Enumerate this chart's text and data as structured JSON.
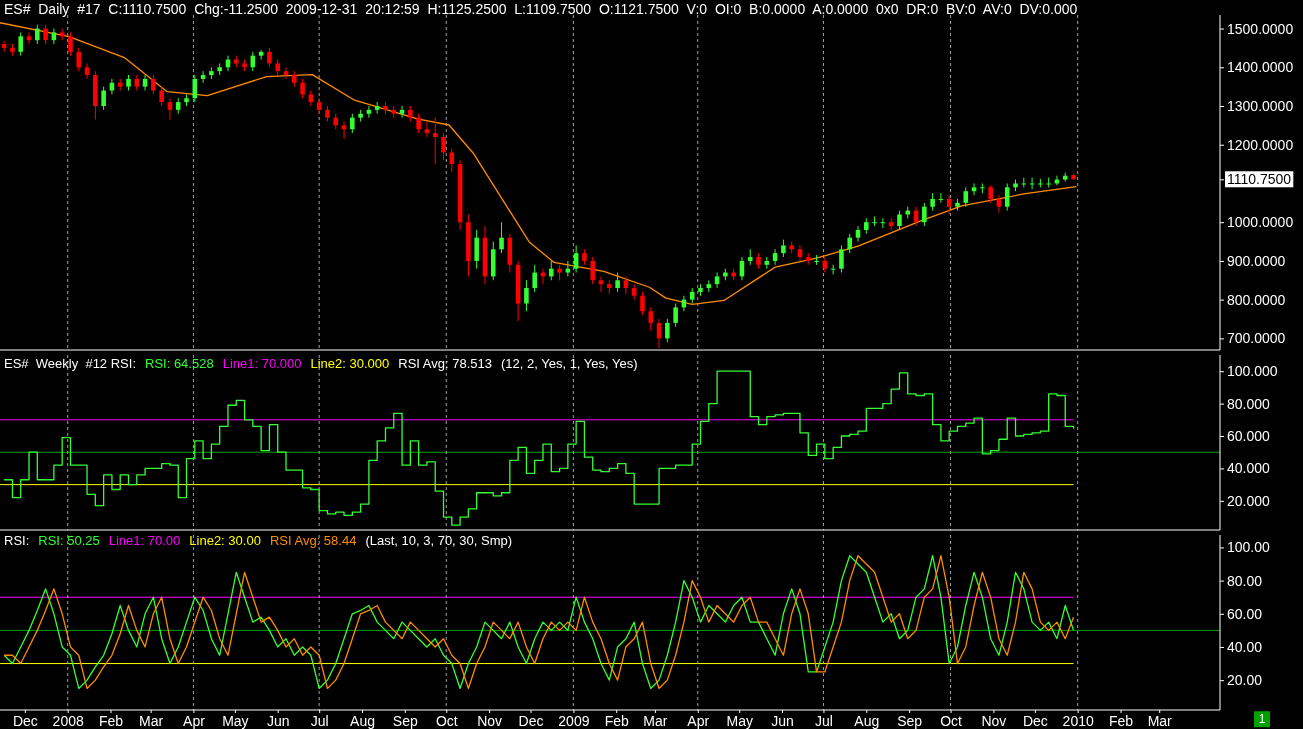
{
  "chart_data": [
    {
      "type": "candlestick",
      "title": "ES#  Daily  #17  C:1110.7500  Chg:-11.2500  2009-12-31  20:12:59  H:1125.2500  L:1109.7500  O:1121.7500  V:0  OI:0  B:0.0000  A:0.0000  0x0  DR:0  BV:0  AV:0  DV:0.000",
      "x": [
        "2007-11-16",
        "2007-11-22",
        "2007-11-28",
        "2007-12-04",
        "2007-12-10",
        "2007-12-16",
        "2007-12-22",
        "2007-12-28",
        "2008-01-03",
        "2008-01-09",
        "2008-01-15",
        "2008-01-21",
        "2008-01-27",
        "2008-02-02",
        "2008-02-08",
        "2008-02-14",
        "2008-02-20",
        "2008-02-26",
        "2008-03-03",
        "2008-03-09",
        "2008-03-15",
        "2008-03-21",
        "2008-03-27",
        "2008-04-02",
        "2008-04-08",
        "2008-04-14",
        "2008-04-20",
        "2008-04-26",
        "2008-05-02",
        "2008-05-08",
        "2008-05-14",
        "2008-05-20",
        "2008-05-26",
        "2008-06-01",
        "2008-06-07",
        "2008-06-13",
        "2008-06-19",
        "2008-06-25",
        "2008-07-01",
        "2008-07-07",
        "2008-07-13",
        "2008-07-19",
        "2008-07-25",
        "2008-07-31",
        "2008-08-06",
        "2008-08-12",
        "2008-08-18",
        "2008-08-24",
        "2008-08-30",
        "2008-09-05",
        "2008-09-11",
        "2008-09-17",
        "2008-09-23",
        "2008-09-29",
        "2008-10-05",
        "2008-10-11",
        "2008-10-17",
        "2008-10-23",
        "2008-10-29",
        "2008-11-04",
        "2008-11-10",
        "2008-11-16",
        "2008-11-22",
        "2008-11-28",
        "2008-12-04",
        "2008-12-10",
        "2008-12-16",
        "2008-12-22",
        "2008-12-28",
        "2009-01-03",
        "2009-01-09",
        "2009-01-15",
        "2009-01-21",
        "2009-01-27",
        "2009-02-02",
        "2009-02-08",
        "2009-02-14",
        "2009-02-20",
        "2009-02-26",
        "2009-03-04",
        "2009-03-10",
        "2009-03-16",
        "2009-03-22",
        "2009-03-28",
        "2009-04-03",
        "2009-04-09",
        "2009-04-15",
        "2009-04-21",
        "2009-04-27",
        "2009-05-03",
        "2009-05-09",
        "2009-05-15",
        "2009-05-21",
        "2009-05-27",
        "2009-06-02",
        "2009-06-08",
        "2009-06-14",
        "2009-06-20",
        "2009-06-26",
        "2009-07-02",
        "2009-07-08",
        "2009-07-14",
        "2009-07-20",
        "2009-07-26",
        "2009-08-01",
        "2009-08-07",
        "2009-08-13",
        "2009-08-19",
        "2009-08-25",
        "2009-08-31",
        "2009-09-06",
        "2009-09-12",
        "2009-09-18",
        "2009-09-24",
        "2009-09-30",
        "2009-10-06",
        "2009-10-12",
        "2009-10-18",
        "2009-10-24",
        "2009-10-30",
        "2009-11-05",
        "2009-11-11",
        "2009-11-17",
        "2009-11-23",
        "2009-11-29",
        "2009-12-05",
        "2009-12-11",
        "2009-12-17",
        "2009-12-23",
        "2009-12-29"
      ],
      "ohlc": [
        [
          1460,
          1468,
          1440,
          1450
        ],
        [
          1450,
          1460,
          1430,
          1440
        ],
        [
          1440,
          1490,
          1430,
          1480
        ],
        [
          1480,
          1490,
          1460,
          1470
        ],
        [
          1470,
          1510,
          1460,
          1500
        ],
        [
          1500,
          1510,
          1460,
          1470
        ],
        [
          1470,
          1500,
          1460,
          1490
        ],
        [
          1490,
          1500,
          1470,
          1480
        ],
        [
          1480,
          1490,
          1430,
          1440
        ],
        [
          1440,
          1450,
          1390,
          1400
        ],
        [
          1400,
          1410,
          1370,
          1380
        ],
        [
          1380,
          1390,
          1265,
          1300
        ],
        [
          1300,
          1350,
          1290,
          1340
        ],
        [
          1340,
          1370,
          1330,
          1360
        ],
        [
          1360,
          1370,
          1340,
          1350
        ],
        [
          1350,
          1380,
          1340,
          1370
        ],
        [
          1370,
          1380,
          1340,
          1350
        ],
        [
          1350,
          1380,
          1340,
          1370
        ],
        [
          1370,
          1380,
          1330,
          1340
        ],
        [
          1340,
          1350,
          1300,
          1310
        ],
        [
          1310,
          1320,
          1265,
          1290
        ],
        [
          1290,
          1320,
          1280,
          1310
        ],
        [
          1310,
          1330,
          1300,
          1320
        ],
        [
          1320,
          1380,
          1310,
          1370
        ],
        [
          1370,
          1390,
          1360,
          1380
        ],
        [
          1380,
          1400,
          1370,
          1390
        ],
        [
          1390,
          1410,
          1380,
          1400
        ],
        [
          1400,
          1430,
          1390,
          1420
        ],
        [
          1420,
          1430,
          1400,
          1410
        ],
        [
          1410,
          1420,
          1390,
          1400
        ],
        [
          1400,
          1440,
          1390,
          1430
        ],
        [
          1430,
          1445,
          1420,
          1440
        ],
        [
          1440,
          1450,
          1400,
          1410
        ],
        [
          1410,
          1420,
          1380,
          1390
        ],
        [
          1390,
          1400,
          1370,
          1380
        ],
        [
          1380,
          1390,
          1350,
          1360
        ],
        [
          1360,
          1370,
          1320,
          1330
        ],
        [
          1330,
          1340,
          1300,
          1310
        ],
        [
          1310,
          1320,
          1280,
          1290
        ],
        [
          1290,
          1300,
          1260,
          1270
        ],
        [
          1270,
          1280,
          1240,
          1250
        ],
        [
          1250,
          1260,
          1215,
          1240
        ],
        [
          1240,
          1280,
          1230,
          1270
        ],
        [
          1270,
          1290,
          1260,
          1280
        ],
        [
          1280,
          1300,
          1270,
          1290
        ],
        [
          1290,
          1310,
          1280,
          1300
        ],
        [
          1300,
          1310,
          1280,
          1290
        ],
        [
          1290,
          1300,
          1270,
          1280
        ],
        [
          1280,
          1300,
          1270,
          1290
        ],
        [
          1290,
          1300,
          1260,
          1270
        ],
        [
          1270,
          1280,
          1230,
          1240
        ],
        [
          1240,
          1260,
          1220,
          1230
        ],
        [
          1230,
          1270,
          1150,
          1220
        ],
        [
          1220,
          1230,
          1160,
          1180
        ],
        [
          1180,
          1190,
          1130,
          1150
        ],
        [
          1150,
          1160,
          980,
          1000
        ],
        [
          1000,
          1020,
          860,
          900
        ],
        [
          900,
          980,
          880,
          960
        ],
        [
          960,
          990,
          840,
          860
        ],
        [
          860,
          950,
          850,
          930
        ],
        [
          930,
          1000,
          920,
          960
        ],
        [
          960,
          970,
          870,
          890
        ],
        [
          890,
          900,
          745,
          790
        ],
        [
          790,
          850,
          770,
          830
        ],
        [
          830,
          890,
          820,
          870
        ],
        [
          870,
          880,
          840,
          860
        ],
        [
          860,
          900,
          850,
          880
        ],
        [
          880,
          890,
          850,
          870
        ],
        [
          870,
          900,
          860,
          880
        ],
        [
          880,
          940,
          870,
          920
        ],
        [
          920,
          930,
          890,
          900
        ],
        [
          900,
          910,
          840,
          850
        ],
        [
          850,
          860,
          820,
          840
        ],
        [
          840,
          850,
          815,
          830
        ],
        [
          830,
          870,
          820,
          850
        ],
        [
          850,
          860,
          815,
          830
        ],
        [
          830,
          840,
          800,
          810
        ],
        [
          810,
          820,
          760,
          770
        ],
        [
          770,
          780,
          720,
          740
        ],
        [
          740,
          750,
          675,
          700
        ],
        [
          700,
          750,
          690,
          740
        ],
        [
          740,
          790,
          730,
          780
        ],
        [
          780,
          810,
          770,
          800
        ],
        [
          800,
          830,
          790,
          820
        ],
        [
          820,
          840,
          810,
          830
        ],
        [
          830,
          850,
          820,
          840
        ],
        [
          840,
          870,
          830,
          860
        ],
        [
          860,
          880,
          850,
          870
        ],
        [
          870,
          880,
          850,
          860
        ],
        [
          860,
          910,
          850,
          900
        ],
        [
          900,
          930,
          890,
          910
        ],
        [
          910,
          920,
          880,
          890
        ],
        [
          890,
          910,
          880,
          900
        ],
        [
          900,
          930,
          890,
          920
        ],
        [
          920,
          955,
          910,
          940
        ],
        [
          940,
          950,
          920,
          930
        ],
        [
          930,
          940,
          900,
          910
        ],
        [
          910,
          920,
          890,
          900
        ],
        [
          900,
          915,
          890,
          900
        ],
        [
          900,
          910,
          870,
          880
        ],
        [
          880,
          890,
          865,
          880
        ],
        [
          880,
          940,
          870,
          930
        ],
        [
          930,
          970,
          920,
          960
        ],
        [
          960,
          990,
          950,
          980
        ],
        [
          980,
          1010,
          970,
          1000
        ],
        [
          1000,
          1015,
          990,
          1000
        ],
        [
          1000,
          1010,
          985,
          1000
        ],
        [
          1000,
          1010,
          980,
          990
        ],
        [
          990,
          1030,
          980,
          1020
        ],
        [
          1020,
          1040,
          1010,
          1030
        ],
        [
          1030,
          1040,
          990,
          1000
        ],
        [
          1000,
          1050,
          990,
          1040
        ],
        [
          1040,
          1075,
          1030,
          1060
        ],
        [
          1060,
          1075,
          1050,
          1060
        ],
        [
          1060,
          1070,
          1020,
          1040
        ],
        [
          1040,
          1060,
          1030,
          1050
        ],
        [
          1050,
          1090,
          1040,
          1080
        ],
        [
          1080,
          1100,
          1070,
          1090
        ],
        [
          1090,
          1100,
          1075,
          1090
        ],
        [
          1090,
          1095,
          1050,
          1060
        ],
        [
          1060,
          1070,
          1025,
          1040
        ],
        [
          1040,
          1100,
          1030,
          1090
        ],
        [
          1090,
          1110,
          1080,
          1100
        ],
        [
          1100,
          1115,
          1090,
          1100
        ],
        [
          1100,
          1115,
          1085,
          1100
        ],
        [
          1100,
          1112,
          1090,
          1100
        ],
        [
          1100,
          1115,
          1090,
          1100
        ],
        [
          1100,
          1120,
          1095,
          1110
        ],
        [
          1110,
          1128,
          1105,
          1120
        ],
        [
          1121.75,
          1125.25,
          1109.75,
          1110.75
        ]
      ],
      "colors": [
        "#ff0000",
        "#ff0000",
        "#33ff33",
        "#ff0000",
        "#33ff33",
        "#ff0000",
        "#33ff33",
        "#ff0000",
        "#ff0000",
        "#ff0000",
        "#ff0000",
        "#ff0000",
        "#33ff33",
        "#33ff33",
        "#ff0000",
        "#33ff33",
        "#ff0000",
        "#33ff33",
        "#ff0000",
        "#ff0000",
        "#ff0000",
        "#33ff33",
        "#33ff33",
        "#33ff33",
        "#33ff33",
        "#33ff33",
        "#33ff33",
        "#33ff33",
        "#ff0000",
        "#ff0000",
        "#33ff33",
        "#33ff33",
        "#ff0000",
        "#ff0000",
        "#ff0000",
        "#ff0000",
        "#ff0000",
        "#ff0000",
        "#ff0000",
        "#ff0000",
        "#ff0000",
        "#ff0000",
        "#33ff33",
        "#33ff33",
        "#33ff33",
        "#33ff33",
        "#ff0000",
        "#ff0000",
        "#33ff33",
        "#ff0000",
        "#ff0000",
        "#ff0000",
        "#ff0000",
        "#ff0000",
        "#ff0000",
        "#ff0000",
        "#ff0000",
        "#33ff33",
        "#ff0000",
        "#33ff33",
        "#33ff33",
        "#ff0000",
        "#ff0000",
        "#33ff33",
        "#33ff33",
        "#ff0000",
        "#33ff33",
        "#ff0000",
        "#33ff33",
        "#33ff33",
        "#ff0000",
        "#ff0000",
        "#ff0000",
        "#ff0000",
        "#33ff33",
        "#ff0000",
        "#ff0000",
        "#ff0000",
        "#ff0000",
        "#ff0000",
        "#33ff33",
        "#33ff33",
        "#33ff33",
        "#33ff33",
        "#33ff33",
        "#33ff33",
        "#33ff33",
        "#33ff33",
        "#ff0000",
        "#33ff33",
        "#33ff33",
        "#ff0000",
        "#33ff33",
        "#33ff33",
        "#33ff33",
        "#ff0000",
        "#ff0000",
        "#ff0000",
        "#33ff33",
        "#ff0000",
        "#33ff33",
        "#33ff33",
        "#33ff33",
        "#33ff33",
        "#33ff33",
        "#33ff33",
        "#33ff33",
        "#ff0000",
        "#33ff33",
        "#33ff33",
        "#ff0000",
        "#33ff33",
        "#33ff33",
        "#33ff33",
        "#ff0000",
        "#33ff33",
        "#33ff33",
        "#33ff33",
        "#33ff33",
        "#ff0000",
        "#ff0000",
        "#33ff33",
        "#33ff33",
        "#33ff33",
        "#33ff33",
        "#33ff33",
        "#33ff33",
        "#33ff33",
        "#33ff33",
        "#ff0000"
      ],
      "series": [
        {
          "type": "line",
          "color": "#ff8c00",
          "x": [
            "2007-11-13",
            "2008-01-02",
            "2008-02-11",
            "2008-03-13",
            "2008-04-11",
            "2008-05-24",
            "2008-06-26",
            "2008-07-26",
            "2008-09-10",
            "2008-10-03",
            "2008-10-21",
            "2008-11-09",
            "2008-11-30",
            "2008-12-18",
            "2009-01-23",
            "2009-02-25",
            "2009-03-09",
            "2009-03-28",
            "2009-04-20",
            "2009-05-27",
            "2009-06-26",
            "2009-07-26",
            "2009-09-09",
            "2009-10-09",
            "2009-11-23",
            "2009-12-31"
          ],
          "values": [
            1515,
            1479,
            1425,
            1337,
            1327,
            1376,
            1381,
            1316,
            1267,
            1251,
            1176,
            1068,
            949,
            896,
            873,
            832,
            804,
            788,
            798,
            884,
            907,
            938,
            1003,
            1042,
            1073,
            1092
          ]
        }
      ],
      "xlim": [
        "2007-11-13",
        "2010-04-14"
      ],
      "ylim": [
        670,
        1535
      ],
      "yticks": [
        {
          "value": 700,
          "label": "700.0000"
        },
        {
          "value": 800,
          "label": "800.0000"
        },
        {
          "value": 900,
          "label": "900.0000"
        },
        {
          "value": 1000,
          "label": "1000.0000"
        },
        {
          "value": 1110.75,
          "label": "1110.7500"
        },
        {
          "value": 1200,
          "label": "1200.0000"
        },
        {
          "value": 1300,
          "label": "1300.0000"
        },
        {
          "value": 1400,
          "label": "1400.0000"
        },
        {
          "value": 1500,
          "label": "1500.0000"
        }
      ],
      "tick_labels": "y",
      "ref_lines": [
        {
          "axis": "x",
          "value": "2008-01-01",
          "color": "#a0a0a0",
          "line_style": "dashed"
        },
        {
          "axis": "x",
          "value": "2008-04-01",
          "color": "#a0a0a0",
          "line_style": "dashed"
        },
        {
          "axis": "x",
          "value": "2008-07-01",
          "color": "#a0a0a0",
          "line_style": "dashed"
        },
        {
          "axis": "x",
          "value": "2008-10-01",
          "color": "#a0a0a0",
          "line_style": "dashed"
        },
        {
          "axis": "x",
          "value": "2009-01-01",
          "color": "#a0a0a0",
          "line_style": "dashed"
        },
        {
          "axis": "x",
          "value": "2009-04-01",
          "color": "#a0a0a0",
          "line_style": "dashed"
        },
        {
          "axis": "x",
          "value": "2009-07-01",
          "color": "#a0a0a0",
          "line_style": "dashed"
        },
        {
          "axis": "x",
          "value": "2009-10-01",
          "color": "#a0a0a0",
          "line_style": "dashed"
        },
        {
          "axis": "x",
          "value": "2010-01-01",
          "color": "#a0a0a0",
          "line_style": "dashed"
        }
      ]
    },
    {
      "type": "step",
      "title": "ES#  Weekly  #12 RSI:",
      "legend": "top left",
      "x": [
        "2007-11-16",
        "2007-11-22",
        "2007-11-28",
        "2007-12-04",
        "2007-12-10",
        "2007-12-16",
        "2007-12-22",
        "2007-12-28",
        "2008-01-03",
        "2008-01-09",
        "2008-01-15",
        "2008-01-21",
        "2008-01-27",
        "2008-02-02",
        "2008-02-08",
        "2008-02-14",
        "2008-02-20",
        "2008-02-26",
        "2008-03-03",
        "2008-03-09",
        "2008-03-15",
        "2008-03-21",
        "2008-03-27",
        "2008-04-02",
        "2008-04-08",
        "2008-04-14",
        "2008-04-20",
        "2008-04-26",
        "2008-05-02",
        "2008-05-08",
        "2008-05-14",
        "2008-05-20",
        "2008-05-26",
        "2008-06-01",
        "2008-06-07",
        "2008-06-13",
        "2008-06-19",
        "2008-06-25",
        "2008-07-01",
        "2008-07-07",
        "2008-07-13",
        "2008-07-19",
        "2008-07-25",
        "2008-07-31",
        "2008-08-06",
        "2008-08-12",
        "2008-08-18",
        "2008-08-24",
        "2008-08-30",
        "2008-09-05",
        "2008-09-11",
        "2008-09-17",
        "2008-09-23",
        "2008-09-29",
        "2008-10-05",
        "2008-10-11",
        "2008-10-17",
        "2008-10-23",
        "2008-10-29",
        "2008-11-04",
        "2008-11-10",
        "2008-11-16",
        "2008-11-22",
        "2008-11-28",
        "2008-12-04",
        "2008-12-10",
        "2008-12-16",
        "2008-12-22",
        "2008-12-28",
        "2009-01-03",
        "2009-01-09",
        "2009-01-15",
        "2009-01-21",
        "2009-01-27",
        "2009-02-02",
        "2009-02-08",
        "2009-02-14",
        "2009-02-20",
        "2009-02-26",
        "2009-03-04",
        "2009-03-10",
        "2009-03-16",
        "2009-03-22",
        "2009-03-28",
        "2009-04-03",
        "2009-04-09",
        "2009-04-15",
        "2009-04-21",
        "2009-04-27",
        "2009-05-03",
        "2009-05-09",
        "2009-05-15",
        "2009-05-21",
        "2009-05-27",
        "2009-06-02",
        "2009-06-08",
        "2009-06-14",
        "2009-06-20",
        "2009-06-26",
        "2009-07-02",
        "2009-07-08",
        "2009-07-14",
        "2009-07-20",
        "2009-07-26",
        "2009-08-01",
        "2009-08-07",
        "2009-08-13",
        "2009-08-19",
        "2009-08-25",
        "2009-08-31",
        "2009-09-06",
        "2009-09-12",
        "2009-09-18",
        "2009-09-24",
        "2009-09-30",
        "2009-10-06",
        "2009-10-12",
        "2009-10-18",
        "2009-10-24",
        "2009-10-30",
        "2009-11-05",
        "2009-11-11",
        "2009-11-17",
        "2009-11-23",
        "2009-11-29",
        "2009-12-05",
        "2009-12-11",
        "2009-12-17",
        "2009-12-23",
        "2009-12-29"
      ],
      "series": [
        {
          "name": "RSI: 64.528",
          "color": "#33ff33",
          "values": [
            33,
            22,
            33,
            50,
            33,
            33,
            42,
            59,
            42,
            42,
            24,
            17,
            36,
            27,
            36,
            30,
            36,
            40,
            40,
            43,
            42,
            22,
            46,
            57,
            46,
            55,
            66,
            79,
            82,
            70,
            66,
            51,
            67,
            50,
            39,
            39,
            28,
            27,
            14,
            12,
            13,
            11,
            13,
            18,
            45,
            57,
            65,
            74,
            42,
            57,
            42,
            44,
            26,
            10,
            5,
            10,
            15,
            25,
            25,
            23,
            25,
            45,
            53,
            37,
            45,
            55,
            38,
            40,
            55,
            69,
            47,
            39,
            38,
            40,
            43,
            37,
            18,
            18,
            18,
            40,
            40,
            42,
            42,
            55,
            69,
            80,
            100,
            100,
            100,
            100,
            72,
            67,
            72,
            73,
            74,
            74,
            62,
            48,
            55,
            46,
            53,
            60,
            61,
            63,
            77,
            77,
            80,
            89,
            99,
            86,
            85,
            86,
            67,
            57,
            63,
            66,
            68,
            71,
            49,
            51,
            58,
            71,
            60,
            61,
            62,
            63,
            86,
            85,
            66,
            64.5
          ]
        }
      ],
      "xlim": [
        "2007-11-13",
        "2010-04-14"
      ],
      "ylim": [
        2,
        110
      ],
      "yticks": [
        {
          "value": 20,
          "label": "20.000"
        },
        {
          "value": 40,
          "label": "40.000"
        },
        {
          "value": 60,
          "label": "60.000"
        },
        {
          "value": 80,
          "label": "80.000"
        },
        {
          "value": 100,
          "label": "100.000"
        }
      ],
      "tick_labels": "y",
      "ref_lines": [
        {
          "axis": "y",
          "value": 70,
          "label": "Line1: 70.000",
          "color": "#ff00ff"
        },
        {
          "axis": "y",
          "value": 30,
          "label": "Line2: 30.000",
          "color": "#ffff00"
        },
        {
          "axis": "y",
          "value": 50,
          "color": "#00a000"
        },
        {
          "axis": "x",
          "value": "2008-01-01",
          "color": "#a0a0a0",
          "line_style": "dashed"
        },
        {
          "axis": "x",
          "value": "2008-04-01",
          "color": "#a0a0a0",
          "line_style": "dashed"
        },
        {
          "axis": "x",
          "value": "2008-07-01",
          "color": "#a0a0a0",
          "line_style": "dashed"
        },
        {
          "axis": "x",
          "value": "2008-10-01",
          "color": "#a0a0a0",
          "line_style": "dashed"
        },
        {
          "axis": "x",
          "value": "2009-01-01",
          "color": "#a0a0a0",
          "line_style": "dashed"
        },
        {
          "axis": "x",
          "value": "2009-04-01",
          "color": "#a0a0a0",
          "line_style": "dashed"
        },
        {
          "axis": "x",
          "value": "2009-07-01",
          "color": "#a0a0a0",
          "line_style": "dashed"
        },
        {
          "axis": "x",
          "value": "2009-10-01",
          "color": "#a0a0a0",
          "line_style": "dashed"
        },
        {
          "axis": "x",
          "value": "2010-01-01",
          "color": "#a0a0a0",
          "line_style": "dashed"
        }
      ],
      "annotations": [
        "RSI Avg: 78.513",
        "(12, 2, Yes, 1, Yes, Yes)"
      ]
    },
    {
      "type": "line",
      "title": "RSI:",
      "subtitle": "1",
      "legend": "top left",
      "x": [
        "2007-11-16",
        "2007-11-22",
        "2007-11-28",
        "2007-12-04",
        "2007-12-10",
        "2007-12-16",
        "2007-12-22",
        "2007-12-28",
        "2008-01-03",
        "2008-01-09",
        "2008-01-15",
        "2008-01-21",
        "2008-01-27",
        "2008-02-02",
        "2008-02-08",
        "2008-02-14",
        "2008-02-20",
        "2008-02-26",
        "2008-03-03",
        "2008-03-09",
        "2008-03-15",
        "2008-03-21",
        "2008-03-27",
        "2008-04-02",
        "2008-04-08",
        "2008-04-14",
        "2008-04-20",
        "2008-04-26",
        "2008-05-02",
        "2008-05-08",
        "2008-05-14",
        "2008-05-20",
        "2008-05-26",
        "2008-06-01",
        "2008-06-07",
        "2008-06-13",
        "2008-06-19",
        "2008-06-25",
        "2008-07-01",
        "2008-07-07",
        "2008-07-13",
        "2008-07-19",
        "2008-07-25",
        "2008-07-31",
        "2008-08-06",
        "2008-08-12",
        "2008-08-18",
        "2008-08-24",
        "2008-08-30",
        "2008-09-05",
        "2008-09-11",
        "2008-09-17",
        "2008-09-23",
        "2008-09-29",
        "2008-10-05",
        "2008-10-11",
        "2008-10-17",
        "2008-10-23",
        "2008-10-29",
        "2008-11-04",
        "2008-11-10",
        "2008-11-16",
        "2008-11-22",
        "2008-11-28",
        "2008-12-04",
        "2008-12-10",
        "2008-12-16",
        "2008-12-22",
        "2008-12-28",
        "2009-01-03",
        "2009-01-09",
        "2009-01-15",
        "2009-01-21",
        "2009-01-27",
        "2009-02-02",
        "2009-02-08",
        "2009-02-14",
        "2009-02-20",
        "2009-02-26",
        "2009-03-04",
        "2009-03-10",
        "2009-03-16",
        "2009-03-22",
        "2009-03-28",
        "2009-04-03",
        "2009-04-09",
        "2009-04-15",
        "2009-04-21",
        "2009-04-27",
        "2009-05-03",
        "2009-05-09",
        "2009-05-15",
        "2009-05-21",
        "2009-05-27",
        "2009-06-02",
        "2009-06-08",
        "2009-06-14",
        "2009-06-20",
        "2009-06-26",
        "2009-07-02",
        "2009-07-08",
        "2009-07-14",
        "2009-07-20",
        "2009-07-26",
        "2009-08-01",
        "2009-08-07",
        "2009-08-13",
        "2009-08-19",
        "2009-08-25",
        "2009-08-31",
        "2009-09-06",
        "2009-09-12",
        "2009-09-18",
        "2009-09-24",
        "2009-09-30",
        "2009-10-06",
        "2009-10-12",
        "2009-10-18",
        "2009-10-24",
        "2009-10-30",
        "2009-11-05",
        "2009-11-11",
        "2009-11-17",
        "2009-11-23",
        "2009-11-29",
        "2009-12-05",
        "2009-12-11",
        "2009-12-17",
        "2009-12-23",
        "2009-12-29"
      ],
      "series": [
        {
          "name": "RSI: 50.25",
          "color": "#33ff33",
          "values": [
            35,
            30,
            40,
            50,
            62,
            75,
            60,
            40,
            35,
            15,
            20,
            28,
            35,
            48,
            65,
            50,
            40,
            60,
            70,
            45,
            30,
            40,
            55,
            70,
            62,
            45,
            35,
            60,
            85,
            70,
            55,
            58,
            50,
            40,
            45,
            35,
            40,
            35,
            15,
            20,
            30,
            45,
            60,
            62,
            65,
            55,
            50,
            45,
            55,
            50,
            45,
            40,
            45,
            35,
            30,
            15,
            30,
            40,
            55,
            50,
            45,
            55,
            40,
            30,
            45,
            55,
            50,
            55,
            50,
            70,
            55,
            45,
            30,
            20,
            40,
            45,
            55,
            30,
            15,
            20,
            35,
            55,
            80,
            70,
            55,
            65,
            60,
            55,
            65,
            70,
            55,
            55,
            45,
            35,
            60,
            75,
            60,
            25,
            25,
            40,
            55,
            80,
            95,
            90,
            85,
            70,
            55,
            60,
            45,
            50,
            70,
            75,
            95,
            70,
            30,
            40,
            65,
            85,
            70,
            45,
            35,
            55,
            85,
            75,
            55,
            50,
            55,
            45,
            65,
            50
          ]
        },
        {
          "name": "RSI Avg: 58.44",
          "color": "#ff8c00",
          "values": [
            35,
            35,
            30,
            40,
            50,
            62,
            75,
            60,
            40,
            35,
            15,
            20,
            28,
            35,
            48,
            65,
            50,
            40,
            60,
            70,
            45,
            30,
            40,
            55,
            70,
            62,
            45,
            35,
            60,
            85,
            70,
            55,
            58,
            50,
            40,
            45,
            35,
            40,
            35,
            15,
            20,
            30,
            45,
            60,
            62,
            65,
            55,
            50,
            45,
            55,
            50,
            45,
            40,
            45,
            35,
            30,
            15,
            30,
            40,
            55,
            50,
            45,
            55,
            40,
            30,
            45,
            55,
            50,
            55,
            50,
            70,
            55,
            45,
            30,
            20,
            40,
            45,
            55,
            30,
            15,
            20,
            35,
            55,
            80,
            70,
            55,
            65,
            60,
            55,
            65,
            70,
            55,
            55,
            45,
            35,
            60,
            75,
            60,
            25,
            25,
            40,
            55,
            80,
            95,
            90,
            85,
            70,
            55,
            60,
            45,
            50,
            70,
            75,
            95,
            70,
            30,
            40,
            65,
            85,
            70,
            45,
            35,
            55,
            85,
            75,
            55,
            50,
            55,
            45,
            58
          ]
        }
      ],
      "xlim": [
        "2007-11-13",
        "2010-04-14"
      ],
      "xticks": [
        {
          "value": "2007-12-01",
          "label": "Dec"
        },
        {
          "value": "2008-01-01",
          "label": "2008"
        },
        {
          "value": "2008-02-01",
          "label": "Feb"
        },
        {
          "value": "2008-03-01",
          "label": "Mar"
        },
        {
          "value": "2008-04-01",
          "label": "Apr"
        },
        {
          "value": "2008-05-01",
          "label": "May"
        },
        {
          "value": "2008-06-01",
          "label": "Jun"
        },
        {
          "value": "2008-07-01",
          "label": "Jul"
        },
        {
          "value": "2008-08-01",
          "label": "Aug"
        },
        {
          "value": "2008-09-01",
          "label": "Sep"
        },
        {
          "value": "2008-10-01",
          "label": "Oct"
        },
        {
          "value": "2008-11-01",
          "label": "Nov"
        },
        {
          "value": "2008-12-01",
          "label": "Dec"
        },
        {
          "value": "2009-01-01",
          "label": "2009"
        },
        {
          "value": "2009-02-01",
          "label": "Feb"
        },
        {
          "value": "2009-03-01",
          "label": "Mar"
        },
        {
          "value": "2009-04-01",
          "label": "Apr"
        },
        {
          "value": "2009-05-01",
          "label": "May"
        },
        {
          "value": "2009-06-01",
          "label": "Jun"
        },
        {
          "value": "2009-07-01",
          "label": "Jul"
        },
        {
          "value": "2009-08-01",
          "label": "Aug"
        },
        {
          "value": "2009-09-01",
          "label": "Sep"
        },
        {
          "value": "2009-10-01",
          "label": "Oct"
        },
        {
          "value": "2009-11-01",
          "label": "Nov"
        },
        {
          "value": "2009-12-01",
          "label": "Dec"
        },
        {
          "value": "2010-01-01",
          "label": "2010"
        },
        {
          "value": "2010-02-01",
          "label": "Feb"
        },
        {
          "value": "2010-03-01",
          "label": "Mar"
        }
      ],
      "ylim": [
        2,
        107.5
      ],
      "yticks": [
        {
          "value": 20,
          "label": "20.00"
        },
        {
          "value": 40,
          "label": "40.00"
        },
        {
          "value": 60,
          "label": "60.00"
        },
        {
          "value": 80,
          "label": "80.00"
        },
        {
          "value": 100,
          "label": "100.00"
        }
      ],
      "ref_lines": [
        {
          "axis": "y",
          "value": 70,
          "label": "Line1: 70.00",
          "color": "#ff00ff"
        },
        {
          "axis": "y",
          "value": 30,
          "label": "Line2: 30.00",
          "color": "#ffff00"
        },
        {
          "axis": "y",
          "value": 50,
          "color": "#00a000"
        },
        {
          "axis": "x",
          "value": "2008-01-01",
          "color": "#a0a0a0",
          "line_style": "dashed"
        },
        {
          "axis": "x",
          "value": "2008-04-01",
          "color": "#a0a0a0",
          "line_style": "dashed"
        },
        {
          "axis": "x",
          "value": "2008-07-01",
          "color": "#a0a0a0",
          "line_style": "dashed"
        },
        {
          "axis": "x",
          "value": "2008-10-01",
          "color": "#a0a0a0",
          "line_style": "dashed"
        },
        {
          "axis": "x",
          "value": "2009-01-01",
          "color": "#a0a0a0",
          "line_style": "dashed"
        },
        {
          "axis": "x",
          "value": "2009-04-01",
          "color": "#a0a0a0",
          "line_style": "dashed"
        },
        {
          "axis": "x",
          "value": "2009-07-01",
          "color": "#a0a0a0",
          "line_style": "dashed"
        },
        {
          "axis": "x",
          "value": "2009-10-01",
          "color": "#a0a0a0",
          "line_style": "dashed"
        },
        {
          "axis": "x",
          "value": "2010-01-01",
          "color": "#a0a0a0",
          "line_style": "dashed"
        }
      ],
      "annotations": [
        "(Last, 10, 3, 70, 30, Smp)"
      ]
    }
  ]
}
